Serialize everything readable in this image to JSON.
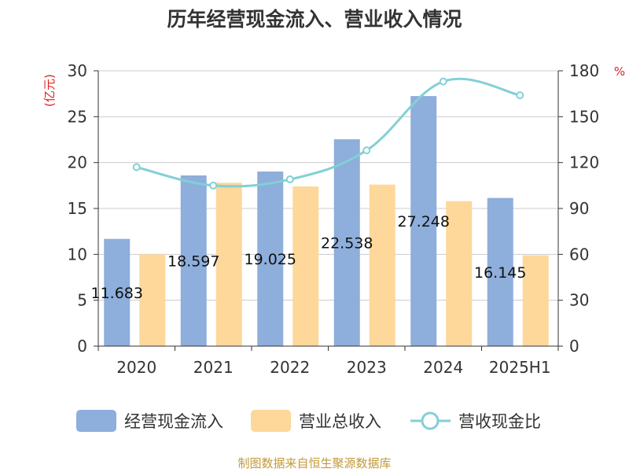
{
  "chart_data": {
    "type": "bar",
    "title": "历年经营现金流入、营业收入情况",
    "categories": [
      "2020",
      "2021",
      "2022",
      "2023",
      "2024",
      "2025H1"
    ],
    "series": [
      {
        "name": "经营现金流入",
        "axis": "left",
        "kind": "bar",
        "color": "#8eaedb",
        "values": [
          11.683,
          18.597,
          19.025,
          22.538,
          27.248,
          16.145
        ],
        "labels": [
          "11.683",
          "18.597",
          "19.025",
          "22.538",
          "27.248",
          "16.145"
        ]
      },
      {
        "name": "营业总收入",
        "axis": "left",
        "kind": "bar",
        "color": "#fdd89a",
        "values": [
          10.0,
          17.8,
          17.4,
          17.6,
          15.8,
          9.9
        ]
      },
      {
        "name": "营收现金比",
        "axis": "right",
        "kind": "line",
        "color": "#82d0d6",
        "values": [
          117,
          105,
          109,
          128,
          173,
          164
        ]
      }
    ],
    "y_left": {
      "unit": "(亿元)",
      "ylim": [
        0,
        30
      ],
      "ticks": [
        "0",
        "5",
        "10",
        "15",
        "20",
        "25",
        "30"
      ]
    },
    "y_right": {
      "unit": "%",
      "ylim": [
        0,
        180
      ],
      "ticks": [
        "0",
        "30",
        "60",
        "90",
        "120",
        "150",
        "180"
      ]
    },
    "grid": true,
    "legend": "bottom"
  },
  "source_text": "制图数据来自恒生聚源数据库"
}
